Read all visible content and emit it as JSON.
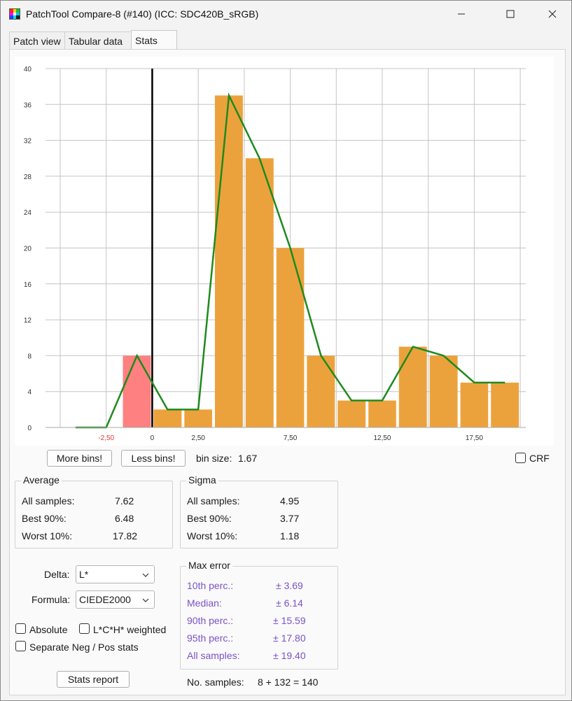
{
  "window": {
    "title": "PatchTool Compare-8 (#140) (ICC: SDC420B_sRGB)",
    "icons": [
      "app-icon",
      "minimize-icon",
      "maximize-icon",
      "close-icon"
    ]
  },
  "tabs": [
    {
      "label": "Patch view",
      "active": false
    },
    {
      "label": "Tabular data",
      "active": false
    },
    {
      "label": "Stats",
      "active": true
    }
  ],
  "chart_data": {
    "type": "bar",
    "ylim": [
      0,
      40
    ],
    "xlim": [
      -5.8,
      20.3
    ],
    "y_ticks": [
      "0",
      "4",
      "8",
      "12",
      "16",
      "20",
      "24",
      "28",
      "32",
      "36",
      "40"
    ],
    "x_tick_labels": [
      {
        "value": -2.5,
        "label": "-2,50",
        "color": "#e03b3b"
      },
      {
        "value": 0,
        "label": "0",
        "color": "#333333"
      },
      {
        "value": 2.5,
        "label": "2,50",
        "color": "#333333"
      },
      {
        "value": 7.5,
        "label": "7,50",
        "color": "#333333"
      },
      {
        "value": 12.5,
        "label": "12,50",
        "color": "#333333"
      },
      {
        "value": 17.5,
        "label": "17,50",
        "color": "#333333"
      }
    ],
    "bin_size": 1.67,
    "bars": [
      {
        "from": -1.67,
        "to": 0,
        "value": 8,
        "color": "#ff8080"
      },
      {
        "from": 0,
        "to": 1.67,
        "value": 2,
        "color": "#eca23c"
      },
      {
        "from": 1.67,
        "to": 3.33,
        "value": 2,
        "color": "#eca23c"
      },
      {
        "from": 3.33,
        "to": 5.0,
        "value": 37,
        "color": "#eca23c"
      },
      {
        "from": 5.0,
        "to": 6.67,
        "value": 30,
        "color": "#eca23c"
      },
      {
        "from": 6.67,
        "to": 8.33,
        "value": 20,
        "color": "#eca23c"
      },
      {
        "from": 8.33,
        "to": 10.0,
        "value": 8,
        "color": "#eca23c"
      },
      {
        "from": 10.0,
        "to": 11.67,
        "value": 3,
        "color": "#eca23c"
      },
      {
        "from": 11.67,
        "to": 13.33,
        "value": 3,
        "color": "#eca23c"
      },
      {
        "from": 13.33,
        "to": 15.0,
        "value": 9,
        "color": "#eca23c"
      },
      {
        "from": 15.0,
        "to": 16.67,
        "value": 8,
        "color": "#eca23c"
      },
      {
        "from": 16.67,
        "to": 18.33,
        "value": 5,
        "color": "#eca23c"
      },
      {
        "from": 18.33,
        "to": 20.0,
        "value": 5,
        "color": "#eca23c"
      }
    ],
    "line": {
      "color": "#1e8a1e",
      "x": [
        -4.17,
        -2.5,
        -0.83,
        0.83,
        2.5,
        4.17,
        5.83,
        7.5,
        9.17,
        10.83,
        12.5,
        14.17,
        15.83,
        17.5,
        19.17
      ],
      "y": [
        0,
        0,
        8,
        2,
        2,
        37,
        30,
        20,
        8,
        3,
        3,
        9,
        8,
        5,
        5
      ]
    },
    "zero_line_color": "#000000",
    "grid": true
  },
  "controls": {
    "more_bins": "More bins!",
    "less_bins": "Less bins!",
    "bin_size_label": "bin size:",
    "bin_size_value": "1.67",
    "crf_label": "CRF",
    "crf_checked": false
  },
  "average": {
    "title": "Average",
    "rows": [
      {
        "label": "All samples:",
        "value": "7.62"
      },
      {
        "label": "Best 90%:",
        "value": "6.48"
      },
      {
        "label": "Worst 10%:",
        "value": "17.82"
      }
    ]
  },
  "sigma": {
    "title": "Sigma",
    "rows": [
      {
        "label": "All samples:",
        "value": "4.95"
      },
      {
        "label": "Best 90%:",
        "value": "3.77"
      },
      {
        "label": "Worst 10%:",
        "value": "1.18"
      }
    ]
  },
  "delta": {
    "label": "Delta:",
    "value": "L*"
  },
  "formula": {
    "label": "Formula:",
    "value": "CIEDE2000"
  },
  "options": {
    "absolute": "Absolute",
    "lch_weighted": "L*C*H* weighted",
    "separate": "Separate Neg / Pos stats"
  },
  "max_error": {
    "title": "Max error",
    "rows": [
      {
        "label": "10th perc.:",
        "value": "± 3.69"
      },
      {
        "label": "Median:",
        "value": "± 6.14"
      },
      {
        "label": "90th perc.:",
        "value": "± 15.59"
      },
      {
        "label": "95th perc.:",
        "value": "± 17.80"
      },
      {
        "label": "All samples:",
        "value": "± 19.40"
      }
    ],
    "color": "#7b52c6"
  },
  "stats_report": "Stats report",
  "samples": {
    "label": "No. samples:",
    "value": "8 + 132 = 140"
  }
}
